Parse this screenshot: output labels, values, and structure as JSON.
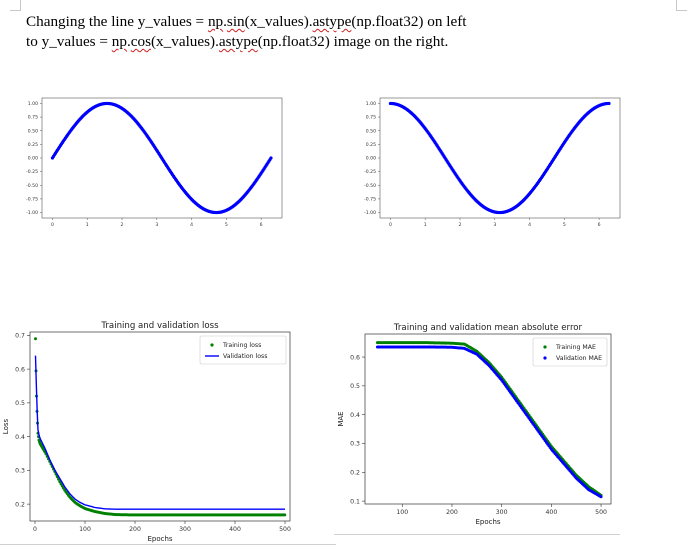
{
  "document": {
    "line1": {
      "before": "Changing the line  y_values = ",
      "w1": "np",
      "mid1": ".",
      "w2": "sin",
      "mid2": "(x_values).",
      "w3": "astype",
      "after": "(np.float32) on left"
    },
    "line2": {
      "before": "to y_values = ",
      "w1": "np",
      "mid1": ".",
      "w2": "cos",
      "mid2": "(x_values).",
      "w3": "astype",
      "after": "(np.float32) image on the right."
    }
  },
  "chart_data": [
    {
      "type": "scatter",
      "function": "sin",
      "x_range": [
        0,
        6.2832
      ],
      "xlim": [
        -0.3,
        6.6
      ],
      "ylim": [
        -1.1,
        1.1
      ],
      "xticks": [
        "0",
        "1",
        "2",
        "3",
        "4",
        "5",
        "6"
      ],
      "yticks": [
        "1.00",
        "0.75",
        "0.50",
        "0.25",
        "0.00",
        "-0.25",
        "-0.50",
        "-0.75",
        "-1.00"
      ],
      "color": "#0000ff"
    },
    {
      "type": "scatter",
      "function": "cos",
      "x_range": [
        0,
        6.2832
      ],
      "xlim": [
        -0.3,
        6.6
      ],
      "ylim": [
        -1.1,
        1.1
      ],
      "xticks": [
        "0",
        "1",
        "2",
        "3",
        "4",
        "5",
        "6"
      ],
      "yticks": [
        "1.00",
        "0.75",
        "0.50",
        "0.25",
        "0.00",
        "-0.25",
        "-0.50",
        "-0.75",
        "-1.00"
      ],
      "color": "#0000ff"
    },
    {
      "type": "line",
      "title": "Training and validation loss",
      "xlabel": "Epochs",
      "ylabel": "Loss",
      "xlim": [
        -10,
        510
      ],
      "ylim": [
        0.15,
        0.71
      ],
      "xticks": [
        0,
        100,
        200,
        300,
        400,
        500
      ],
      "yticks": [
        0.2,
        0.3,
        0.4,
        0.5,
        0.6,
        0.7
      ],
      "legend": "top-right",
      "series": [
        {
          "name": "Training loss",
          "style": "points",
          "color": "#008000",
          "points": [
            [
              1,
              0.69
            ],
            [
              2,
              0.595
            ],
            [
              3,
              0.52
            ],
            [
              4,
              0.475
            ],
            [
              5,
              0.44
            ],
            [
              6,
              0.41
            ],
            [
              8,
              0.39
            ],
            [
              10,
              0.38
            ],
            [
              20,
              0.355
            ],
            [
              30,
              0.325
            ],
            [
              40,
              0.295
            ],
            [
              50,
              0.265
            ],
            [
              60,
              0.24
            ],
            [
              70,
              0.22
            ],
            [
              80,
              0.205
            ],
            [
              90,
              0.195
            ],
            [
              100,
              0.187
            ],
            [
              120,
              0.178
            ],
            [
              140,
              0.172
            ],
            [
              160,
              0.169
            ],
            [
              200,
              0.168
            ],
            [
              300,
              0.168
            ],
            [
              400,
              0.168
            ],
            [
              500,
              0.168
            ]
          ]
        },
        {
          "name": "Validation loss",
          "style": "line",
          "color": "#0000ff",
          "points": [
            [
              1,
              0.64
            ],
            [
              2,
              0.6
            ],
            [
              3,
              0.53
            ],
            [
              4,
              0.49
            ],
            [
              5,
              0.45
            ],
            [
              6,
              0.42
            ],
            [
              8,
              0.405
            ],
            [
              10,
              0.395
            ],
            [
              20,
              0.365
            ],
            [
              30,
              0.33
            ],
            [
              40,
              0.3
            ],
            [
              50,
              0.275
            ],
            [
              60,
              0.25
            ],
            [
              70,
              0.23
            ],
            [
              80,
              0.215
            ],
            [
              90,
              0.205
            ],
            [
              100,
              0.198
            ],
            [
              120,
              0.19
            ],
            [
              140,
              0.186
            ],
            [
              160,
              0.185
            ],
            [
              200,
              0.185
            ],
            [
              300,
              0.185
            ],
            [
              400,
              0.185
            ],
            [
              500,
              0.185
            ]
          ]
        }
      ]
    },
    {
      "type": "line",
      "title": "Training and validation mean absolute error",
      "xlabel": "Epochs",
      "ylabel": "MAE",
      "xlim": [
        25,
        520
      ],
      "ylim": [
        0.09,
        0.68
      ],
      "xticks": [
        100,
        200,
        300,
        400,
        500
      ],
      "yticks": [
        0.1,
        0.2,
        0.3,
        0.4,
        0.5,
        0.6
      ],
      "legend": "top-right",
      "series": [
        {
          "name": "Training MAE",
          "style": "points",
          "color": "#008000",
          "points": [
            [
              50,
              0.65
            ],
            [
              100,
              0.65
            ],
            [
              150,
              0.65
            ],
            [
              200,
              0.648
            ],
            [
              225,
              0.645
            ],
            [
              250,
              0.62
            ],
            [
              275,
              0.58
            ],
            [
              300,
              0.53
            ],
            [
              325,
              0.47
            ],
            [
              350,
              0.41
            ],
            [
              375,
              0.35
            ],
            [
              400,
              0.29
            ],
            [
              425,
              0.24
            ],
            [
              450,
              0.19
            ],
            [
              475,
              0.15
            ],
            [
              500,
              0.12
            ]
          ]
        },
        {
          "name": "Validation MAE",
          "style": "points",
          "color": "#0000ff",
          "points": [
            [
              50,
              0.635
            ],
            [
              100,
              0.635
            ],
            [
              150,
              0.635
            ],
            [
              200,
              0.634
            ],
            [
              225,
              0.63
            ],
            [
              250,
              0.61
            ],
            [
              275,
              0.57
            ],
            [
              300,
              0.52
            ],
            [
              325,
              0.46
            ],
            [
              350,
              0.4
            ],
            [
              375,
              0.34
            ],
            [
              400,
              0.28
            ],
            [
              425,
              0.23
            ],
            [
              450,
              0.18
            ],
            [
              475,
              0.14
            ],
            [
              500,
              0.115
            ]
          ]
        }
      ]
    }
  ]
}
